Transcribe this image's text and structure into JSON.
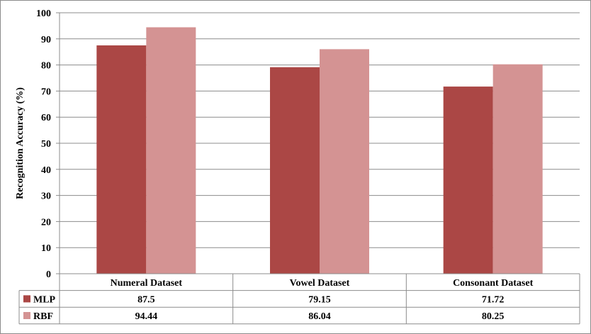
{
  "chart_data": {
    "type": "bar",
    "categories": [
      "Numeral Dataset",
      "Vowel Dataset",
      "Consonant Dataset"
    ],
    "series": [
      {
        "name": "MLP",
        "values": [
          87.5,
          79.15,
          71.72
        ],
        "color": "#ab4745",
        "display": [
          "87.5",
          "79.15",
          "71.72"
        ]
      },
      {
        "name": "RBF",
        "values": [
          94.44,
          86.04,
          80.25
        ],
        "color": "#d49393",
        "display": [
          "94.44",
          "86.04",
          "80.25"
        ]
      }
    ],
    "ylabel": "Recognition Accuracy (%)",
    "xlabel": "",
    "ylim": [
      0,
      100
    ],
    "yticks": [
      0,
      10,
      20,
      30,
      40,
      50,
      60,
      70,
      80,
      90,
      100
    ],
    "grid": true,
    "legend": "data-table"
  }
}
